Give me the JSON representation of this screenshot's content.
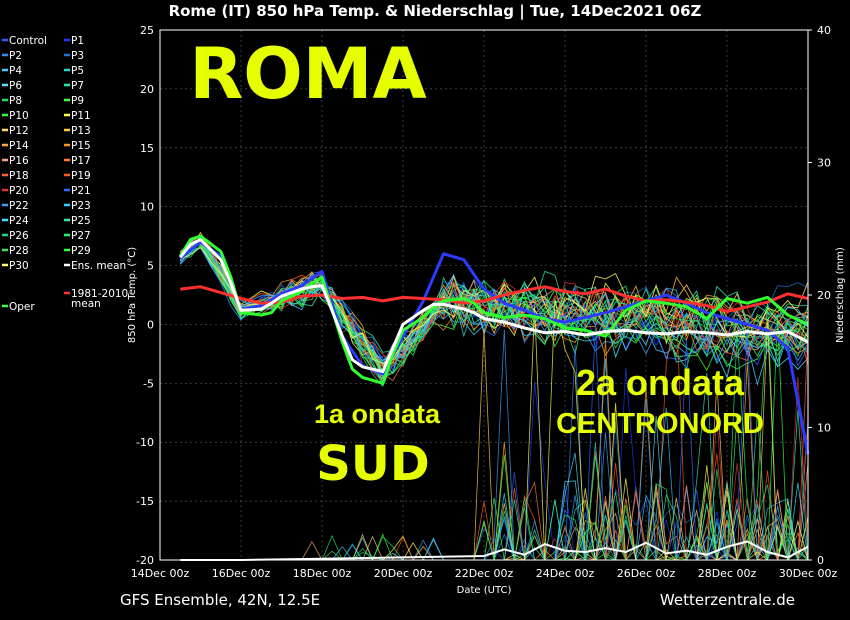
{
  "chart_data": {
    "type": "line",
    "title": "Rome  (IT)  850 hPa Temp. & Niederschlag | Tue, 14Dec2021 06Z",
    "xlabel": "Date (UTC)",
    "ylabel_left": "850 hPa Temp. (°C)",
    "ylabel_right": "Niederschlag (mm)",
    "ylim_left": [
      -20,
      25
    ],
    "ylim_right": [
      0,
      40
    ],
    "yticks_left": [
      25,
      20,
      15,
      10,
      5,
      0,
      -5,
      -10,
      -15,
      -20
    ],
    "yticks_right": [
      40,
      30,
      20,
      10,
      0
    ],
    "x_ticks": [
      "14Dec 00z",
      "16Dec 00z",
      "18Dec 00z",
      "20Dec 00z",
      "22Dec 00z",
      "24Dec 00z",
      "26Dec 00z",
      "28Dec 00z",
      "30Dec 00z"
    ],
    "x_start_day": 14,
    "x_end_day": 30,
    "legend": [
      {
        "name": "Control",
        "color": "#2b5cff"
      },
      {
        "name": "P1",
        "color": "#1a3cff"
      },
      {
        "name": "P2",
        "color": "#2f8bff"
      },
      {
        "name": "P3",
        "color": "#1f6fd6"
      },
      {
        "name": "P4",
        "color": "#40c8ff"
      },
      {
        "name": "P5",
        "color": "#29d6c8"
      },
      {
        "name": "P6",
        "color": "#5adfff"
      },
      {
        "name": "P7",
        "color": "#22e8a0"
      },
      {
        "name": "P8",
        "color": "#20e060"
      },
      {
        "name": "P9",
        "color": "#40ff40"
      },
      {
        "name": "P10",
        "color": "#30ff30"
      },
      {
        "name": "P11",
        "color": "#ffff40"
      },
      {
        "name": "P12",
        "color": "#ffd870"
      },
      {
        "name": "P13",
        "color": "#ffcc44"
      },
      {
        "name": "P14",
        "color": "#ffb030"
      },
      {
        "name": "P15",
        "color": "#ff9a20"
      },
      {
        "name": "P16",
        "color": "#ffa080"
      },
      {
        "name": "P17",
        "color": "#ff7a30"
      },
      {
        "name": "P18",
        "color": "#ff6040"
      },
      {
        "name": "P19",
        "color": "#ff5a20"
      },
      {
        "name": "P20",
        "color": "#e03030"
      },
      {
        "name": "P21",
        "color": "#2f6bff"
      },
      {
        "name": "P22",
        "color": "#3aa0ff"
      },
      {
        "name": "P23",
        "color": "#30c8ff"
      },
      {
        "name": "P24",
        "color": "#40e0ff"
      },
      {
        "name": "P25",
        "color": "#30e8b0"
      },
      {
        "name": "P26",
        "color": "#20d880"
      },
      {
        "name": "P27",
        "color": "#20f070"
      },
      {
        "name": "P28",
        "color": "#40e060"
      },
      {
        "name": "P29",
        "color": "#30ff40"
      },
      {
        "name": "P30",
        "color": "#ffff60"
      },
      {
        "name": "Ens. mean",
        "color": "#ffffff"
      },
      {
        "name": "Oper",
        "color": "#40ff40"
      },
      {
        "name": "1981-2010 mean",
        "color": "#ff3030"
      }
    ],
    "series": [
      {
        "name": "Ens. mean",
        "days": [
          14.5,
          14.75,
          15,
          15.5,
          15.75,
          16,
          16.5,
          16.75,
          17,
          17.5,
          17.75,
          18,
          18.5,
          18.75,
          19,
          19.5,
          19.75,
          20,
          20.5,
          20.75,
          21,
          21.5,
          21.75,
          22,
          22.5,
          23,
          23.5,
          24,
          24.5,
          25,
          25.5,
          26,
          26.5,
          27,
          27.5,
          28,
          28.5,
          29,
          29.5,
          30
        ],
        "values": [
          5.7,
          6.8,
          7.2,
          5.5,
          3.5,
          1.2,
          1.3,
          1.8,
          2.4,
          3.0,
          3.2,
          3.3,
          -1.0,
          -3.0,
          -3.6,
          -4.0,
          -2.0,
          0.0,
          1.2,
          1.7,
          1.7,
          1.3,
          1.0,
          0.5,
          0.2,
          -0.3,
          -0.7,
          -0.6,
          -0.9,
          -0.6,
          -0.5,
          -0.7,
          -0.8,
          -0.6,
          -0.7,
          -0.9,
          -0.6,
          -0.8,
          -0.6,
          -1.5
        ]
      },
      {
        "name": "Oper",
        "days": [
          14.5,
          14.75,
          15,
          15.5,
          15.75,
          16,
          16.5,
          16.75,
          17,
          17.5,
          17.75,
          18,
          18.5,
          18.75,
          19,
          19.5,
          19.75,
          20,
          20.5,
          20.75,
          21,
          21.5,
          21.75,
          22,
          22.5,
          23,
          23.5,
          24,
          24.5,
          25,
          25.5,
          26,
          26.5,
          27,
          27.5,
          28,
          28.5,
          29,
          29.5,
          30
        ],
        "values": [
          5.8,
          7.2,
          7.5,
          6.2,
          4.0,
          1.0,
          0.8,
          1.0,
          2.0,
          2.8,
          3.5,
          4.0,
          -1.5,
          -3.8,
          -4.5,
          -5.0,
          -2.5,
          -0.5,
          0.6,
          1.5,
          2.0,
          2.2,
          1.8,
          1.0,
          0.6,
          0.8,
          0.5,
          -0.3,
          -0.5,
          -1.0,
          1.2,
          2.0,
          1.8,
          1.5,
          0.5,
          2.2,
          1.8,
          2.3,
          0.8,
          0.0
        ]
      },
      {
        "name": "Control",
        "days": [
          14.5,
          15,
          15.5,
          16,
          16.5,
          17,
          17.5,
          18,
          18.5,
          19,
          19.5,
          20,
          20.5,
          21,
          21.5,
          22,
          22.5,
          23,
          23.5,
          24,
          24.5,
          25,
          25.5,
          26,
          26.5,
          27,
          27.5,
          28,
          28.5,
          29,
          29.5,
          30
        ],
        "values": [
          5.6,
          7.0,
          5.8,
          1.3,
          1.6,
          2.6,
          3.3,
          4.5,
          -1.0,
          -3.5,
          -4.2,
          -1.0,
          2.0,
          6.0,
          5.5,
          3.0,
          1.8,
          1.2,
          0.5,
          0.2,
          0.6,
          1.0,
          1.5,
          2.0,
          2.5,
          1.8,
          1.0,
          0.5,
          0.0,
          -0.5,
          -2.0,
          -11.0
        ]
      },
      {
        "name": "1981-2010 mean",
        "days": [
          14.5,
          15,
          15.5,
          16,
          16.5,
          17,
          17.5,
          18,
          18.5,
          19,
          19.5,
          20,
          20.5,
          21,
          21.5,
          22,
          22.5,
          23,
          23.5,
          24,
          24.5,
          25,
          25.5,
          26,
          26.5,
          27,
          27.5,
          28,
          28.5,
          29,
          29.5,
          30
        ],
        "values": [
          3.0,
          3.2,
          2.7,
          2.2,
          1.8,
          1.9,
          2.4,
          2.5,
          2.2,
          2.3,
          2.0,
          2.3,
          2.2,
          2.1,
          1.8,
          2.0,
          2.5,
          2.9,
          3.2,
          2.8,
          2.6,
          3.0,
          2.4,
          2.0,
          2.1,
          1.9,
          1.6,
          1.1,
          1.5,
          1.9,
          2.6,
          2.2
        ]
      }
    ],
    "precip_mean": {
      "days": [
        14.5,
        16,
        18,
        20,
        22,
        22.5,
        23,
        23.5,
        24,
        24.5,
        25,
        25.5,
        26,
        26.5,
        27,
        27.5,
        28,
        28.5,
        29,
        29.5,
        30
      ],
      "values": [
        0.0,
        0.0,
        0.1,
        0.2,
        0.3,
        0.8,
        0.4,
        1.2,
        0.7,
        0.6,
        0.9,
        0.6,
        1.3,
        0.5,
        0.7,
        0.4,
        1.0,
        1.4,
        0.6,
        0.2,
        1.0
      ]
    },
    "annotations": [
      "ROMA",
      "1a ondata",
      "SUD",
      "2a ondata",
      "CENTRONORD"
    ]
  },
  "footer": {
    "left": "GFS Ensemble, 42N, 12.5E",
    "right": "Wetterzentrale.de"
  }
}
